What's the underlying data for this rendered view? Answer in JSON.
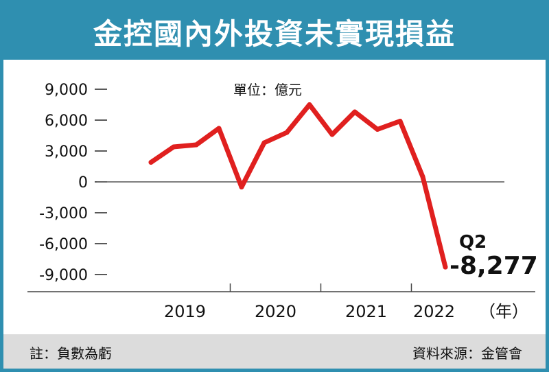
{
  "header": {
    "title": "金控國內外投資未實現損益"
  },
  "unit": "單位：億元",
  "footer": {
    "note": "註：負數為虧",
    "source": "資料來源：金管會"
  },
  "colors": {
    "accent": "#2f8fb0",
    "line": "#e0201f",
    "footer_bg": "#dcdcdc"
  },
  "chart_data": {
    "type": "line",
    "title": "金控國內外投資未實現損益",
    "unit_label": "單位：億元",
    "x_unit": "（年）",
    "year_labels": [
      "2019",
      "2020",
      "2021",
      "2022"
    ],
    "quarters": [
      "2019Q1",
      "2019Q2",
      "2019Q3",
      "2019Q4",
      "2020Q1",
      "2020Q2",
      "2020Q3",
      "2020Q4",
      "2021Q1",
      "2021Q2",
      "2021Q3",
      "2021Q4",
      "2022Q1",
      "2022Q2"
    ],
    "values": [
      1900,
      3400,
      3600,
      5200,
      -500,
      3800,
      4800,
      7500,
      4600,
      6800,
      5100,
      5900,
      500,
      -8277
    ],
    "yticks": [
      9000,
      6000,
      3000,
      0,
      -3000,
      -6000,
      -9000
    ],
    "ytick_labels": [
      "9,000",
      "6,000",
      "3,000",
      "0",
      "-3,000",
      "-6,000",
      "-9,000"
    ],
    "ylim": [
      -9000,
      9000
    ],
    "annotation": {
      "quarter": "Q2",
      "value": "-8,277"
    },
    "grid": false
  }
}
